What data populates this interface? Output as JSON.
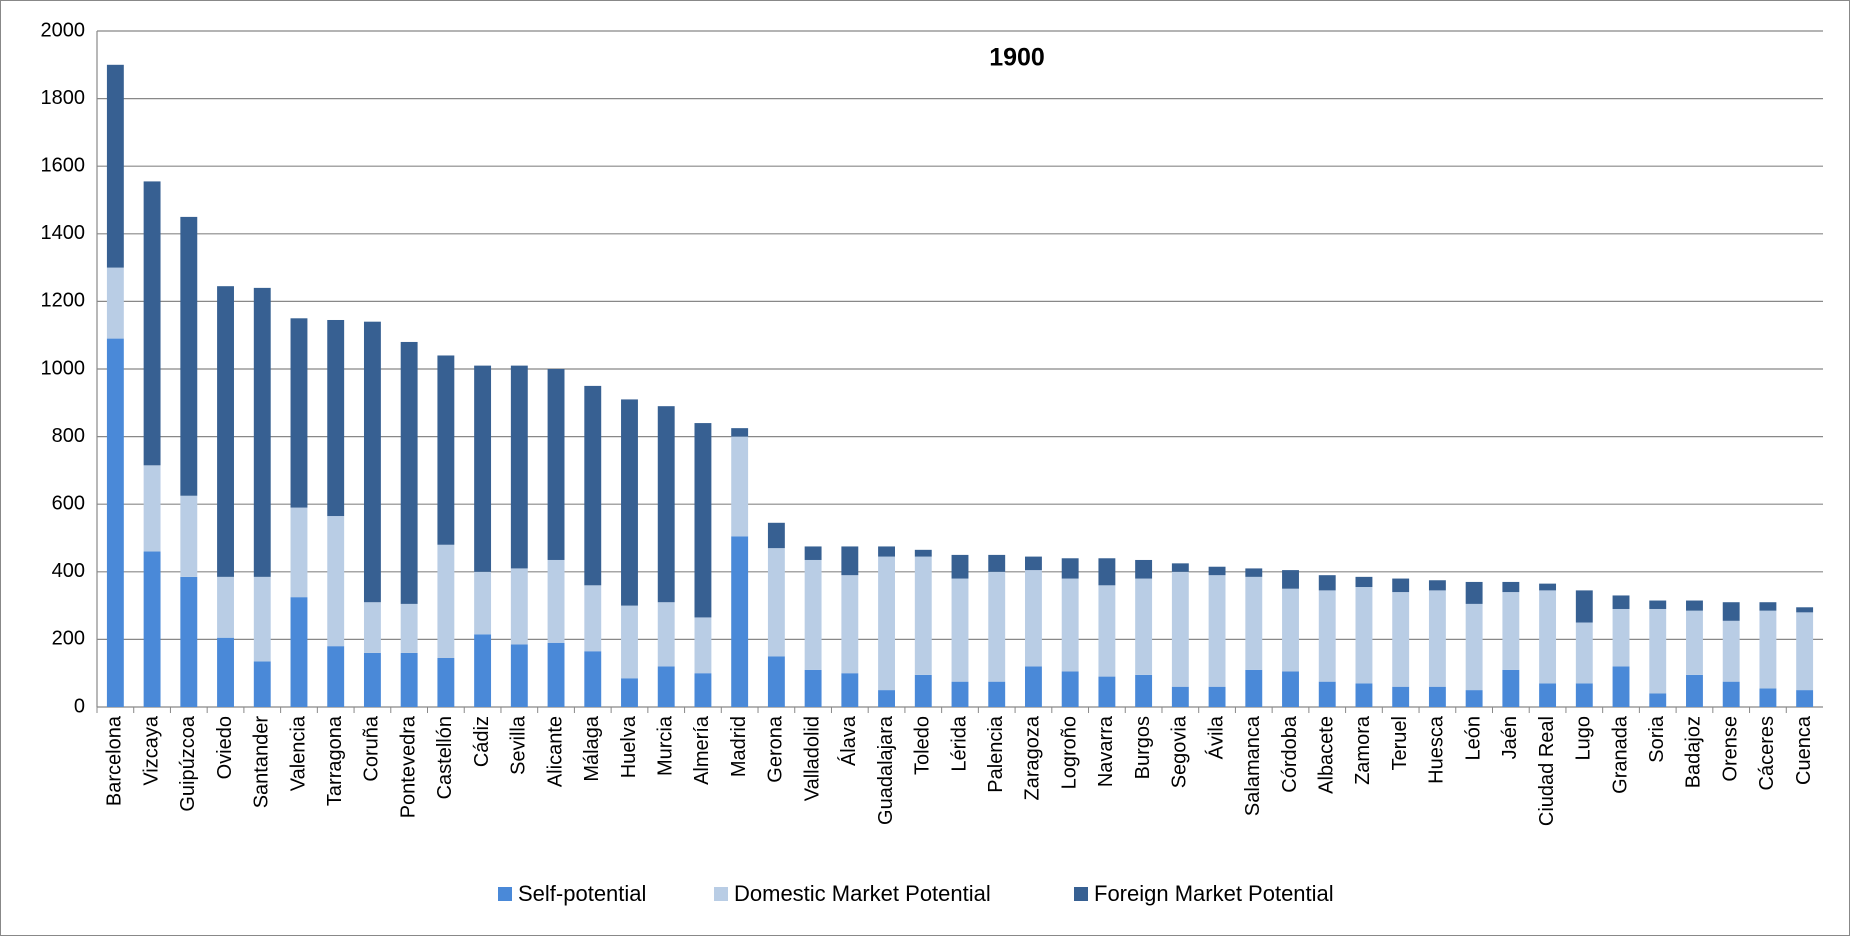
{
  "chart_data": {
    "type": "bar",
    "stacked": true,
    "title": "1900",
    "categories": [
      "Barcelona",
      "Vizcaya",
      "Guipúzcoa",
      "Oviedo",
      "Santander",
      "Valencia",
      "Tarragona",
      "Coruña",
      "Pontevedra",
      "Castellón",
      "Cádiz",
      "Sevilla",
      "Alicante",
      "Málaga",
      "Huelva",
      "Murcia",
      "Almería",
      "Madrid",
      "Gerona",
      "Valladolid",
      "Álava",
      "Guadalajara",
      "Toledo",
      "Lérida",
      "Palencia",
      "Zaragoza",
      "Logroño",
      "Navarra",
      "Burgos",
      "Segovia",
      "Ávila",
      "Salamanca",
      "Córdoba",
      "Albacete",
      "Zamora",
      "Teruel",
      "Huesca",
      "León",
      "Jaén",
      "Ciudad Real",
      "Lugo",
      "Granada",
      "Soria",
      "Badajoz",
      "Orense",
      "Cáceres",
      "Cuenca"
    ],
    "series": [
      {
        "name": "Self-potential",
        "color": "#4a89d8",
        "values": [
          1090,
          460,
          385,
          205,
          135,
          325,
          180,
          160,
          160,
          145,
          215,
          185,
          190,
          165,
          85,
          120,
          100,
          505,
          150,
          110,
          100,
          50,
          95,
          75,
          75,
          120,
          105,
          90,
          95,
          60,
          60,
          110,
          105,
          75,
          70,
          60,
          60,
          50,
          110,
          70,
          70,
          120,
          40,
          95,
          75,
          55,
          50
        ]
      },
      {
        "name": "Domestic Market Potential",
        "color": "#b9cde5",
        "values": [
          210,
          255,
          240,
          180,
          250,
          265,
          385,
          150,
          145,
          335,
          185,
          225,
          245,
          195,
          215,
          190,
          165,
          295,
          320,
          325,
          290,
          395,
          350,
          305,
          325,
          285,
          275,
          270,
          285,
          340,
          330,
          275,
          245,
          270,
          285,
          280,
          285,
          255,
          230,
          275,
          180,
          170,
          250,
          190,
          180,
          230,
          230
        ]
      },
      {
        "name": "Foreign Market Potential",
        "color": "#376092",
        "values": [
          600,
          840,
          825,
          860,
          855,
          560,
          580,
          830,
          775,
          560,
          610,
          600,
          565,
          590,
          610,
          580,
          575,
          25,
          75,
          40,
          85,
          30,
          20,
          70,
          50,
          40,
          60,
          80,
          55,
          25,
          25,
          25,
          55,
          45,
          30,
          40,
          30,
          65,
          30,
          20,
          95,
          40,
          25,
          30,
          55,
          25,
          15
        ]
      }
    ],
    "ylim": [
      0,
      2000
    ],
    "yticks": [
      0,
      200,
      400,
      600,
      800,
      1000,
      1200,
      1400,
      1600,
      1800,
      2000
    ],
    "grid": true,
    "legend": "bottom"
  }
}
